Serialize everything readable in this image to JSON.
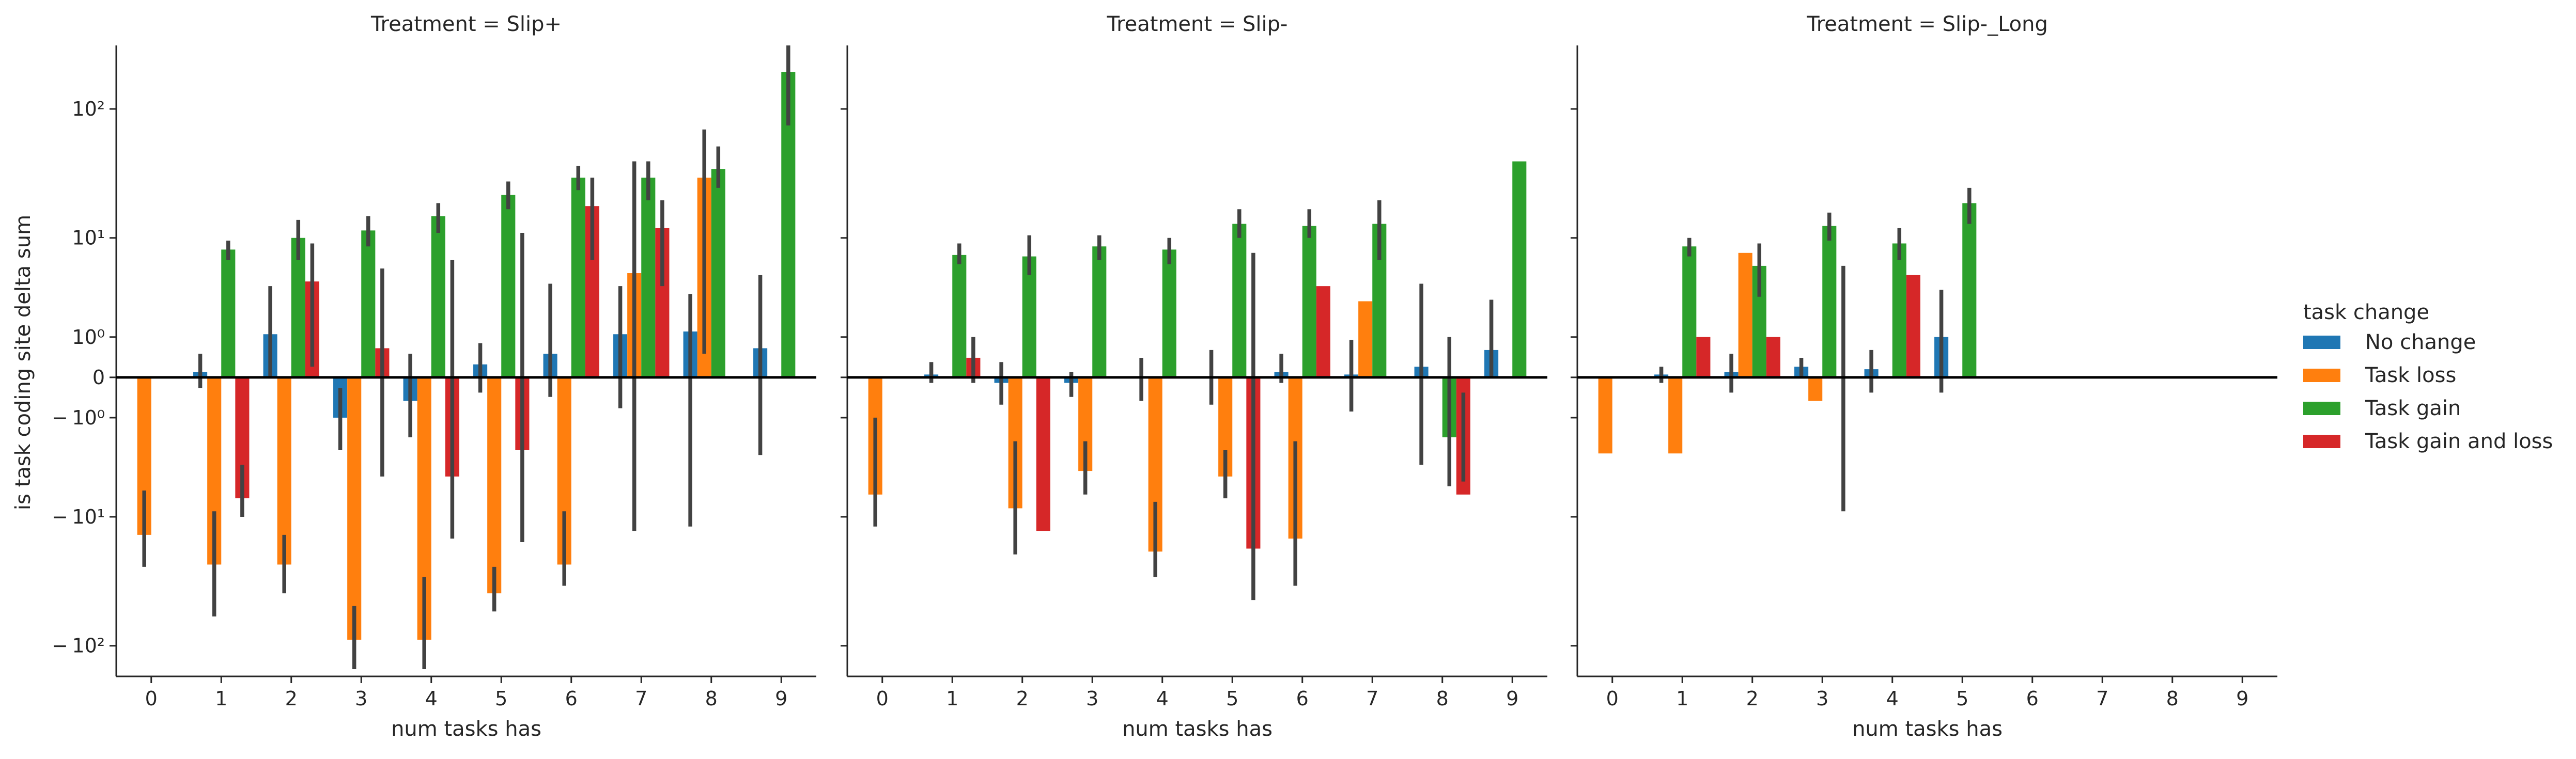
{
  "chart_data": {
    "type": "bar",
    "ylabel": "is task coding site delta sum",
    "yscale": "symlog",
    "ylim": [
      -170,
      300
    ],
    "ytick_values": [
      -100,
      -10,
      -1,
      0,
      1,
      10,
      100
    ],
    "ytick_labels": [
      "− 10²",
      "− 10¹",
      "− 10⁰",
      "0",
      "10⁰",
      "10¹",
      "10²"
    ],
    "categories": [
      "0",
      "1",
      "2",
      "3",
      "4",
      "5",
      "6",
      "7",
      "8",
      "9"
    ],
    "legend": {
      "title": "task change",
      "position": "right",
      "entries": [
        {
          "name": "No change",
          "color": "#1f77b4"
        },
        {
          "name": "Task loss",
          "color": "#ff7f0e"
        },
        {
          "name": "Task gain",
          "color": "#2ca02c"
        },
        {
          "name": "Task gain and loss",
          "color": "#d62728"
        }
      ]
    },
    "panels": [
      {
        "title": "Treatment = Slip+",
        "xlabel": "num tasks has",
        "series": [
          {
            "name": "No change",
            "values": [
              null,
              0.1,
              1.1,
              -1.0,
              -0.5,
              0.25,
              0.5,
              1.1,
              1.2,
              0.65
            ],
            "ci": [
              null,
              [
                -0.2,
                0.5
              ],
              [
                0.0,
                3.8
              ],
              [
                -2.5,
                -0.2
              ],
              [
                -1.8,
                0.5
              ],
              [
                -0.3,
                0.8
              ],
              [
                -0.4,
                4.0
              ],
              [
                -0.7,
                3.8
              ],
              [
                -12,
                3.2
              ],
              [
                -2.8,
                4.8
              ]
            ]
          },
          {
            "name": "Task loss",
            "values": [
              -14,
              -24,
              -24,
              -90,
              -90,
              -40,
              -24,
              5.0,
              30,
              null
            ],
            "ci": [
              [
                -25,
                -6
              ],
              [
                -60,
                -9
              ],
              [
                -40,
                -14
              ],
              [
                -150,
                -50
              ],
              [
                -150,
                -30
              ],
              [
                -55,
                -25
              ],
              [
                -35,
                -9
              ],
              [
                -13,
                40
              ],
              [
                0.5,
                70
              ],
              null
            ]
          },
          {
            "name": "Task gain",
            "values": [
              null,
              8.0,
              10,
              11.5,
              15,
              22,
              30,
              30,
              35,
              190
            ],
            "ci": [
              null,
              [
                6.5,
                9.5
              ],
              [
                6.5,
                14
              ],
              [
                8.5,
                15
              ],
              [
                11,
                19
              ],
              [
                17,
                28
              ],
              [
                24,
                37
              ],
              [
                20,
                40
              ],
              [
                25,
                52
              ],
              [
                75,
                300
              ]
            ]
          },
          {
            "name": "Task gain and loss",
            "values": [
              null,
              -7.0,
              4.2,
              0.65,
              -4.5,
              -2.5,
              18,
              12,
              null,
              null
            ],
            "ci": [
              null,
              [
                -10,
                -3.5
              ],
              [
                0.2,
                9.0
              ],
              [
                -4.5,
                5.5
              ],
              [
                -15,
                6.5
              ],
              [
                -16,
                11
              ],
              [
                6.5,
                30
              ],
              [
                3.8,
                20
              ],
              null,
              null
            ]
          }
        ]
      },
      {
        "title": "Treatment = Slip-",
        "xlabel": "num tasks has",
        "series": [
          {
            "name": "No change",
            "values": [
              null,
              0.05,
              -0.1,
              -0.1,
              null,
              null,
              0.1,
              0.05,
              0.2,
              0.6
            ],
            "ci": [
              null,
              [
                -0.1,
                0.3
              ],
              [
                -0.6,
                0.3
              ],
              [
                -0.4,
                0.1
              ],
              [
                -0.5,
                0.4
              ],
              [
                -0.6,
                0.6
              ],
              [
                -0.1,
                0.5
              ],
              [
                -0.8,
                0.9
              ],
              [
                -3.5,
                4.0
              ],
              [
                0.0,
                2.8
              ]
            ]
          },
          {
            "name": "Task loss",
            "values": [
              -6.5,
              null,
              -8.5,
              -4.0,
              -19,
              -4.5,
              -15,
              2.7,
              null,
              null
            ],
            "ci": [
              [
                -12,
                -1.0
              ],
              null,
              [
                -20,
                -2.0
              ],
              [
                -6.5,
                -2.0
              ],
              [
                -30,
                -7.5
              ],
              [
                -7.0,
                -2.5
              ],
              [
                -35,
                -2.0
              ],
              null,
              null,
              null
            ]
          },
          {
            "name": "Task gain",
            "values": [
              null,
              7.2,
              7.0,
              8.5,
              8.0,
              13,
              12.5,
              13,
              -1.8,
              40
            ],
            "ci": [
              null,
              [
                6.0,
                9.0
              ],
              [
                4.8,
                10.5
              ],
              [
                6.5,
                10.5
              ],
              [
                6.0,
                10
              ],
              [
                10,
                17
              ],
              [
                10,
                17
              ],
              [
                6.5,
                20
              ],
              [
                -5.5,
                1.0
              ],
              null
            ]
          },
          {
            "name": "Task gain and loss",
            "values": [
              null,
              0.4,
              -13,
              null,
              null,
              -18,
              3.8,
              null,
              -6.5,
              null
            ],
            "ci": [
              null,
              [
                -0.1,
                1.0
              ],
              null,
              null,
              null,
              [
                -45,
                7.5
              ],
              null,
              null,
              [
                -5.0,
                -0.3
              ],
              null
            ]
          }
        ]
      },
      {
        "title": "Treatment = Slip-_Long",
        "xlabel": "num tasks has",
        "series": [
          {
            "name": "No change",
            "values": [
              null,
              0.05,
              0.1,
              0.2,
              0.15,
              1.0,
              null,
              null,
              null,
              null
            ],
            "ci": [
              null,
              [
                -0.1,
                0.2
              ],
              [
                -0.3,
                0.5
              ],
              [
                0.0,
                0.4
              ],
              [
                -0.3,
                0.6
              ],
              [
                -0.3,
                3.5
              ],
              null,
              null,
              null,
              null
            ]
          },
          {
            "name": "Task loss",
            "values": [
              -2.7,
              -2.7,
              7.5,
              -0.5,
              null,
              null,
              null,
              null,
              null,
              null
            ],
            "ci": [
              null,
              null,
              null,
              null,
              null,
              null,
              null,
              null,
              null,
              null
            ]
          },
          {
            "name": "Task gain",
            "values": [
              null,
              8.5,
              5.8,
              12.5,
              9.0,
              19,
              null,
              null,
              null,
              null
            ],
            "ci": [
              null,
              [
                7.0,
                10
              ],
              [
                3.0,
                9.0
              ],
              [
                9.5,
                16
              ],
              [
                6.5,
                12
              ],
              [
                13,
                25
              ],
              null,
              null,
              null,
              null
            ]
          },
          {
            "name": "Task gain and loss",
            "values": [
              null,
              1.0,
              1.0,
              null,
              4.8,
              null,
              null,
              null,
              null,
              null
            ],
            "ci": [
              null,
              null,
              null,
              [
                -9.0,
                5.8
              ],
              null,
              null,
              null,
              null,
              null,
              null
            ]
          }
        ]
      }
    ]
  }
}
